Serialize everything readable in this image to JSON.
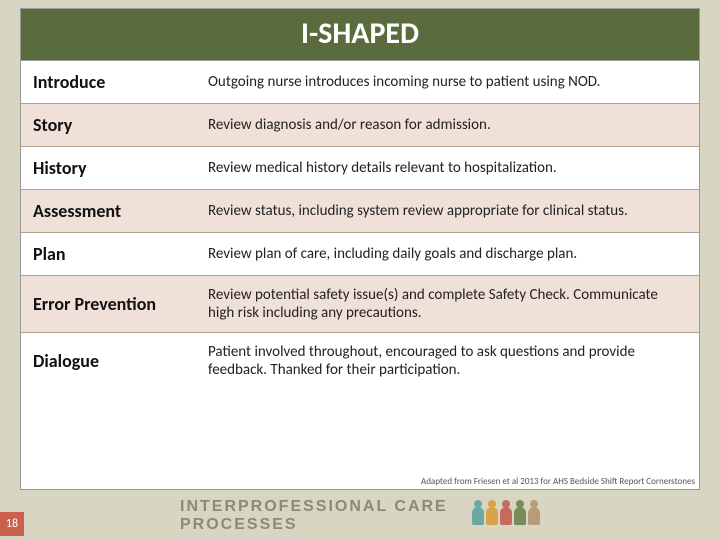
{
  "title": "I-SHAPED",
  "rows": [
    {
      "term": "Introduce",
      "desc": "Outgoing nurse introduces incoming nurse to patient using NOD.",
      "tint": false
    },
    {
      "term": "Story",
      "desc": "Review diagnosis and/or reason for admission.",
      "tint": true
    },
    {
      "term": "History",
      "desc": "Review medical history details relevant to hospitalization.",
      "tint": false
    },
    {
      "term": "Assessment",
      "desc": "Review status, including system review appropriate for clinical status.",
      "tint": true
    },
    {
      "term": "Plan",
      "desc": "Review plan of care, including daily goals and discharge plan.",
      "tint": false
    },
    {
      "term": "Error Prevention",
      "desc": "Review potential safety issue(s) and complete Safety Check. Communicate high risk including any precautions.",
      "tint": true
    },
    {
      "term": "Dialogue",
      "desc": "Patient involved throughout, encouraged to ask questions and provide feedback. Thanked for their participation.",
      "tint": false
    }
  ],
  "citation": "Adapted from Friesen et al 2013 for AHS Bedside Shift Report Cornerstones",
  "page_number": "18",
  "footer_brand": "INTERPROFESSIONAL CARE PROCESSES",
  "colors": {
    "slide_bg": "#d9d5c3",
    "title_bg": "#5a6b3e",
    "tint_row": "#f0e1d8",
    "pagebox": "#c9614d"
  }
}
